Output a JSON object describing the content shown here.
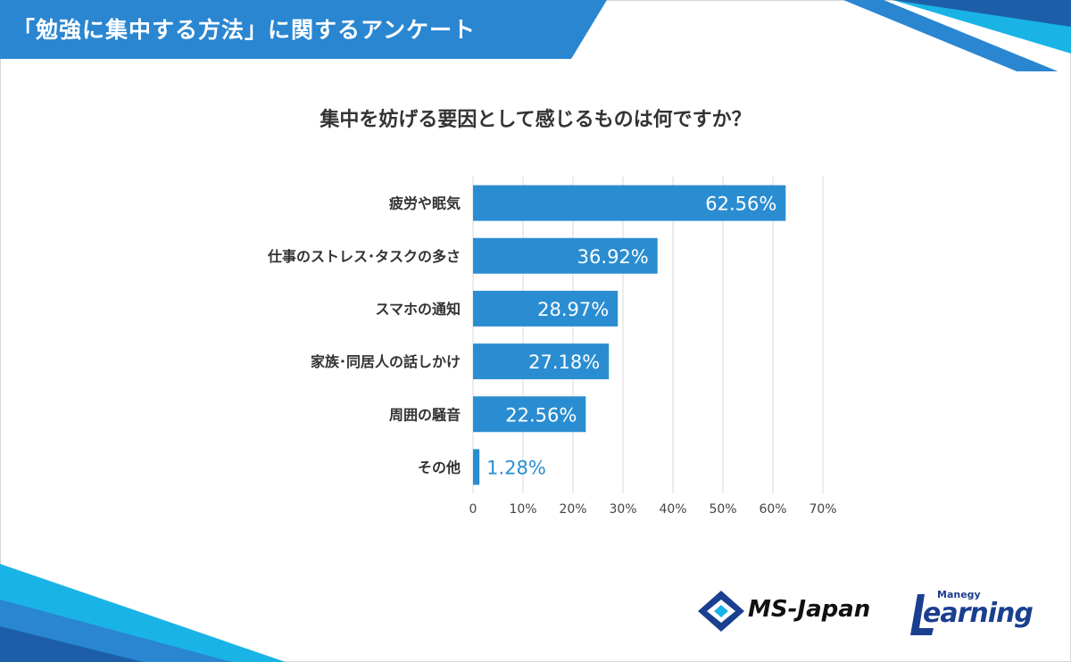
{
  "header": {
    "title": "「勉強に集中する方法」に関するアンケート"
  },
  "question": "集中を妨げる要因として感じるものは何ですか？",
  "colors": {
    "bar": "#2b8dd1",
    "header_blue": "#2a86d1",
    "header_dark": "#1c5fa8",
    "accent_cyan": "#1ab3e6"
  },
  "chart_data": {
    "type": "bar",
    "orientation": "horizontal",
    "categories": [
      "疲労や眠気",
      "仕事のストレス･タスクの多さ",
      "スマホの通知",
      "家族･同居人の話しかけ",
      "周囲の騒音",
      "その他"
    ],
    "values": [
      62.56,
      36.92,
      28.97,
      27.18,
      22.56,
      1.28
    ],
    "data_labels": [
      "62.56%",
      "36.92%",
      "28.97%",
      "27.18%",
      "22.56%",
      "1.28%"
    ],
    "xlim": [
      0,
      70
    ],
    "x_ticks": [
      "0",
      "10%",
      "20%",
      "30%",
      "40%",
      "50%",
      "60%",
      "70%"
    ],
    "grid": true,
    "title": "集中を妨げる要因として感じるものは何ですか？"
  },
  "logos": {
    "ms_japan": "MS-Japan",
    "learning_small": "Manegy",
    "learning_main": "earning"
  }
}
